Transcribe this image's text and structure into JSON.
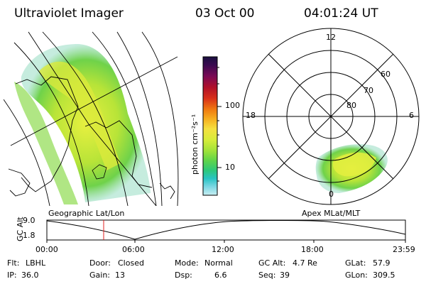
{
  "header": {
    "title": "Ultraviolet Imager",
    "date": "03 Oct 00",
    "time": "04:01:24 UT"
  },
  "colorbar": {
    "label": "photon cm⁻²s⁻¹",
    "ticks": [
      "100",
      "10"
    ],
    "colors": [
      "#1a1040",
      "#3a0a50",
      "#7a0a55",
      "#b0102a",
      "#d8301a",
      "#f07a10",
      "#f6b020",
      "#f5e040",
      "#d6ec3a",
      "#9fe23a",
      "#5fd44a",
      "#2dc87a",
      "#29c4c4",
      "#7fd8e4",
      "#c8eef2"
    ]
  },
  "left_panel": {
    "caption": "Geographic Lat/Lon"
  },
  "right_panel": {
    "caption": "Apex MLat/MLT",
    "mlt_labels": [
      "12",
      "18",
      "6",
      "0"
    ],
    "mlat_labels": [
      "60",
      "70",
      "80"
    ]
  },
  "timeline": {
    "ylabel": "GC Alt",
    "yticks": [
      "9.0",
      "1.8"
    ],
    "xticks": [
      "00:00",
      "06:00",
      "12:00",
      "18:00",
      "23:59"
    ],
    "current_marker_color": "#e02020"
  },
  "info": {
    "row1": [
      {
        "label": "Flt:",
        "value": "LBHL"
      },
      {
        "label": "Door:",
        "value": "Closed"
      },
      {
        "label": "Mode:",
        "value": "Normal"
      },
      {
        "label": "GC Alt:",
        "value": "4.7 Re"
      },
      {
        "label": "GLat:",
        "value": "57.9"
      }
    ],
    "row2": [
      {
        "label": "IP:",
        "value": "36.0"
      },
      {
        "label": "Gain:",
        "value": "13"
      },
      {
        "label": "Dsp:",
        "value": "6.6"
      },
      {
        "label": "Seq:",
        "value": "39"
      },
      {
        "label": "GLon:",
        "value": "309.5"
      }
    ]
  }
}
